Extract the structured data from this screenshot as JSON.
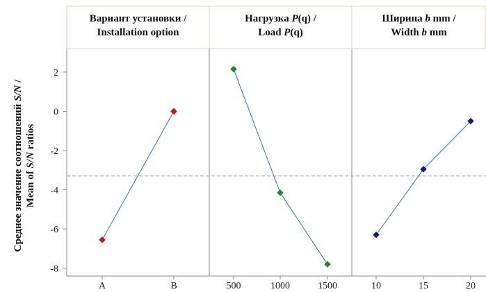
{
  "chart_data": {
    "type": "line",
    "ylabel_lines": [
      [
        "Среднее значение соотношений ",
        {
          "i": "S/N"
        },
        " /"
      ],
      [
        "Mean of ",
        {
          "i": "S/N"
        },
        " ratios"
      ]
    ],
    "ylim": [
      -8.4,
      3.2
    ],
    "yticks": [
      2,
      0,
      -2,
      -4,
      -6,
      -8
    ],
    "reference_line": -3.3,
    "grid": false,
    "panels": [
      {
        "title_lines": [
          [
            "Вариант установки /"
          ],
          [
            "Installation option"
          ]
        ],
        "categories": [
          "A",
          "B"
        ],
        "values": [
          -6.55,
          0.0
        ],
        "marker_color": "#cc1111"
      },
      {
        "title_lines": [
          [
            "Нагрузка ",
            {
              "i": "P"
            },
            "(q) /"
          ],
          [
            "Load ",
            {
              "i": "P"
            },
            "(q)"
          ]
        ],
        "categories": [
          "500",
          "1000",
          "1500"
        ],
        "values": [
          2.15,
          -4.15,
          -7.8
        ],
        "marker_color": "#1a8a2a"
      },
      {
        "title_lines": [
          [
            "Ширина ",
            {
              "i": "b"
            },
            " mm /"
          ],
          [
            "Width ",
            {
              "i": "b"
            },
            " mm"
          ]
        ],
        "categories": [
          "10",
          "15",
          "20"
        ],
        "values": [
          -6.3,
          -2.95,
          -0.5
        ],
        "marker_color": "#1a1a6e"
      }
    ],
    "line_color": "#2f6fbd"
  }
}
